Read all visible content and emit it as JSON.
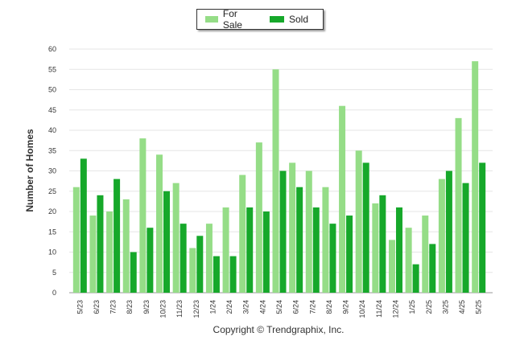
{
  "chart_data": {
    "type": "bar",
    "categories": [
      "5/23",
      "6/23",
      "7/23",
      "8/23",
      "9/23",
      "10/23",
      "11/23",
      "12/23",
      "1/24",
      "2/24",
      "3/24",
      "4/24",
      "5/24",
      "6/24",
      "7/24",
      "8/24",
      "9/24",
      "10/24",
      "11/24",
      "12/24",
      "1/25",
      "2/25",
      "3/25",
      "4/25",
      "5/25"
    ],
    "series": [
      {
        "name": "For Sale",
        "color": "#95dd87",
        "values": [
          26,
          19,
          20,
          23,
          38,
          34,
          27,
          11,
          17,
          21,
          29,
          37,
          55,
          32,
          30,
          26,
          46,
          35,
          22,
          13,
          16,
          19,
          28,
          43,
          57
        ]
      },
      {
        "name": "Sold",
        "color": "#16a82a",
        "values": [
          33,
          24,
          28,
          10,
          16,
          25,
          17,
          14,
          9,
          9,
          21,
          20,
          30,
          26,
          21,
          17,
          19,
          32,
          24,
          21,
          7,
          12,
          30,
          27,
          32
        ]
      }
    ],
    "ylabel": "Number of Homes",
    "xlabel": "",
    "ylim": [
      0,
      60
    ],
    "yticks": [
      0,
      5,
      10,
      15,
      20,
      25,
      30,
      35,
      40,
      45,
      50,
      55,
      60
    ],
    "grid": true,
    "legend_position": "top-center"
  },
  "footer": {
    "copyright": "Copyright © Trendgraphix, Inc."
  }
}
